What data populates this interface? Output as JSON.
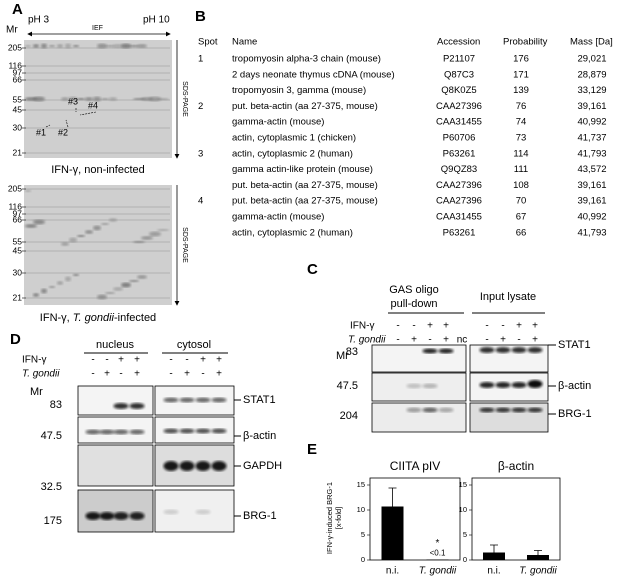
{
  "panel_a": {
    "label": "A",
    "mr": "Mr",
    "ph_low": "pH 3",
    "ief": "IEF",
    "ph_high": "pH 10",
    "sds_page": "SDS-PAGE",
    "gels": [
      {
        "markers": [
          "205",
          "116",
          "97",
          "66",
          "55",
          "45",
          "30",
          "21"
        ],
        "spots": [
          "#1",
          "#2",
          "#3",
          "#4"
        ],
        "caption": [
          "IFN-γ, non-infected"
        ]
      },
      {
        "markers": [
          "205",
          "116",
          "97",
          "66",
          "55",
          "45",
          "30",
          "21"
        ],
        "caption": [
          "IFN-γ, ",
          "T. gondii",
          "-infected"
        ]
      }
    ]
  },
  "panel_b": {
    "label": "B",
    "columns": [
      "Spot",
      "Name",
      "Accession",
      "Probability",
      "Mass [Da]"
    ],
    "rows": [
      {
        "spot": "1",
        "name": "tropomyosin alpha-3 chain (mouse)",
        "accession": "P21107",
        "probability": "176",
        "mass": "29,021"
      },
      {
        "name": "2 days neonate thymus cDNA (mouse)",
        "accession": "Q87C3",
        "probability": "171",
        "mass": "28,879"
      },
      {
        "name": "tropomyosin 3, gamma (mouse)",
        "accession": "Q8K0Z5",
        "probability": "139",
        "mass": "33,129"
      },
      {
        "spot": "2",
        "name": "put. beta-actin (aa 27-375, mouse)",
        "accession": "CAA27396",
        "probability": "76",
        "mass": "39,161"
      },
      {
        "name": "gamma-actin (mouse)",
        "accession": "CAA31455",
        "probability": "74",
        "mass": "40,992"
      },
      {
        "name": "actin, cytoplasmic 1 (chicken)",
        "accession": "P60706",
        "probability": "73",
        "mass": "41,737"
      },
      {
        "spot": "3",
        "name": "actin, cytoplasmic 2 (human)",
        "accession": "P63261",
        "probability": "114",
        "mass": "41,793"
      },
      {
        "name": "gamma actin-like protein (mouse)",
        "accession": "Q9QZ83",
        "probability": "111",
        "mass": "43,572"
      },
      {
        "name": "put. beta-actin (aa 27-375, mouse)",
        "accession": "CAA27396",
        "probability": "108",
        "mass": "39,161"
      },
      {
        "spot": "4",
        "name": "put. beta-actin (aa 27-375, mouse)",
        "accession": "CAA27396",
        "probability": "70",
        "mass": "39,161"
      },
      {
        "name": "gamma-actin (mouse)",
        "accession": "CAA31455",
        "probability": "67",
        "mass": "40,992"
      },
      {
        "name": "actin, cytoplasmic 2 (human)",
        "accession": "P63261",
        "probability": "66",
        "mass": "41,793"
      }
    ]
  },
  "panel_c": {
    "label": "C",
    "pulldown": [
      "GAS oligo",
      "pull-down"
    ],
    "input": "Input lysate",
    "ifn": "IFN-γ",
    "tg": "T. gondii",
    "mr": "Mr",
    "ifn_signs": [
      "-",
      "-",
      "+",
      "+",
      "-",
      "-",
      "+",
      "+"
    ],
    "tg_signs": [
      "-",
      "+",
      "-",
      "+",
      "nc",
      "-",
      "+",
      "-",
      "+"
    ],
    "markers": [
      "83",
      "47.5",
      "204"
    ],
    "blots": [
      "STAT1",
      "β-actin",
      "BRG-1"
    ]
  },
  "panel_d": {
    "label": "D",
    "nucleus": "nucleus",
    "cytosol": "cytosol",
    "ifn": "IFN-γ",
    "tg": "T. gondii",
    "mr": "Mr",
    "ifn_signs": [
      "-",
      "-",
      "+",
      "+",
      "-",
      "-",
      "+",
      "+"
    ],
    "tg_signs": [
      "-",
      "+",
      "-",
      "+",
      "-",
      "+",
      "-",
      "+"
    ],
    "markers": [
      "83",
      "47.5",
      "32.5",
      "175"
    ],
    "blots": [
      "STAT1",
      "β-actin",
      "GAPDH",
      "BRG-1"
    ]
  },
  "panel_e": {
    "label": "E",
    "y_label": [
      "IFN-γ-induced BRG-1",
      "[x-fold]"
    ]
  },
  "chart_data": [
    {
      "type": "bar",
      "title": "CIITA pIV",
      "categories": [
        "n.i.",
        "T. gondii"
      ],
      "values": [
        10.7,
        0.1
      ],
      "errors": [
        3.7,
        null
      ],
      "value_labels": [
        null,
        "<0.1"
      ],
      "annotations": [
        null,
        "*"
      ],
      "color": "#000000",
      "ylim": [
        0,
        16.4
      ],
      "yticks": [
        0,
        5,
        10,
        15
      ]
    },
    {
      "type": "bar",
      "title": "β-actin",
      "categories": [
        "n.i.",
        "T. gondii"
      ],
      "values": [
        1.5,
        1.0
      ],
      "errors": [
        1.5,
        0.9
      ],
      "color": "#000000",
      "ylim": [
        0,
        16.4
      ],
      "yticks": [
        0,
        5,
        10,
        15
      ]
    }
  ]
}
